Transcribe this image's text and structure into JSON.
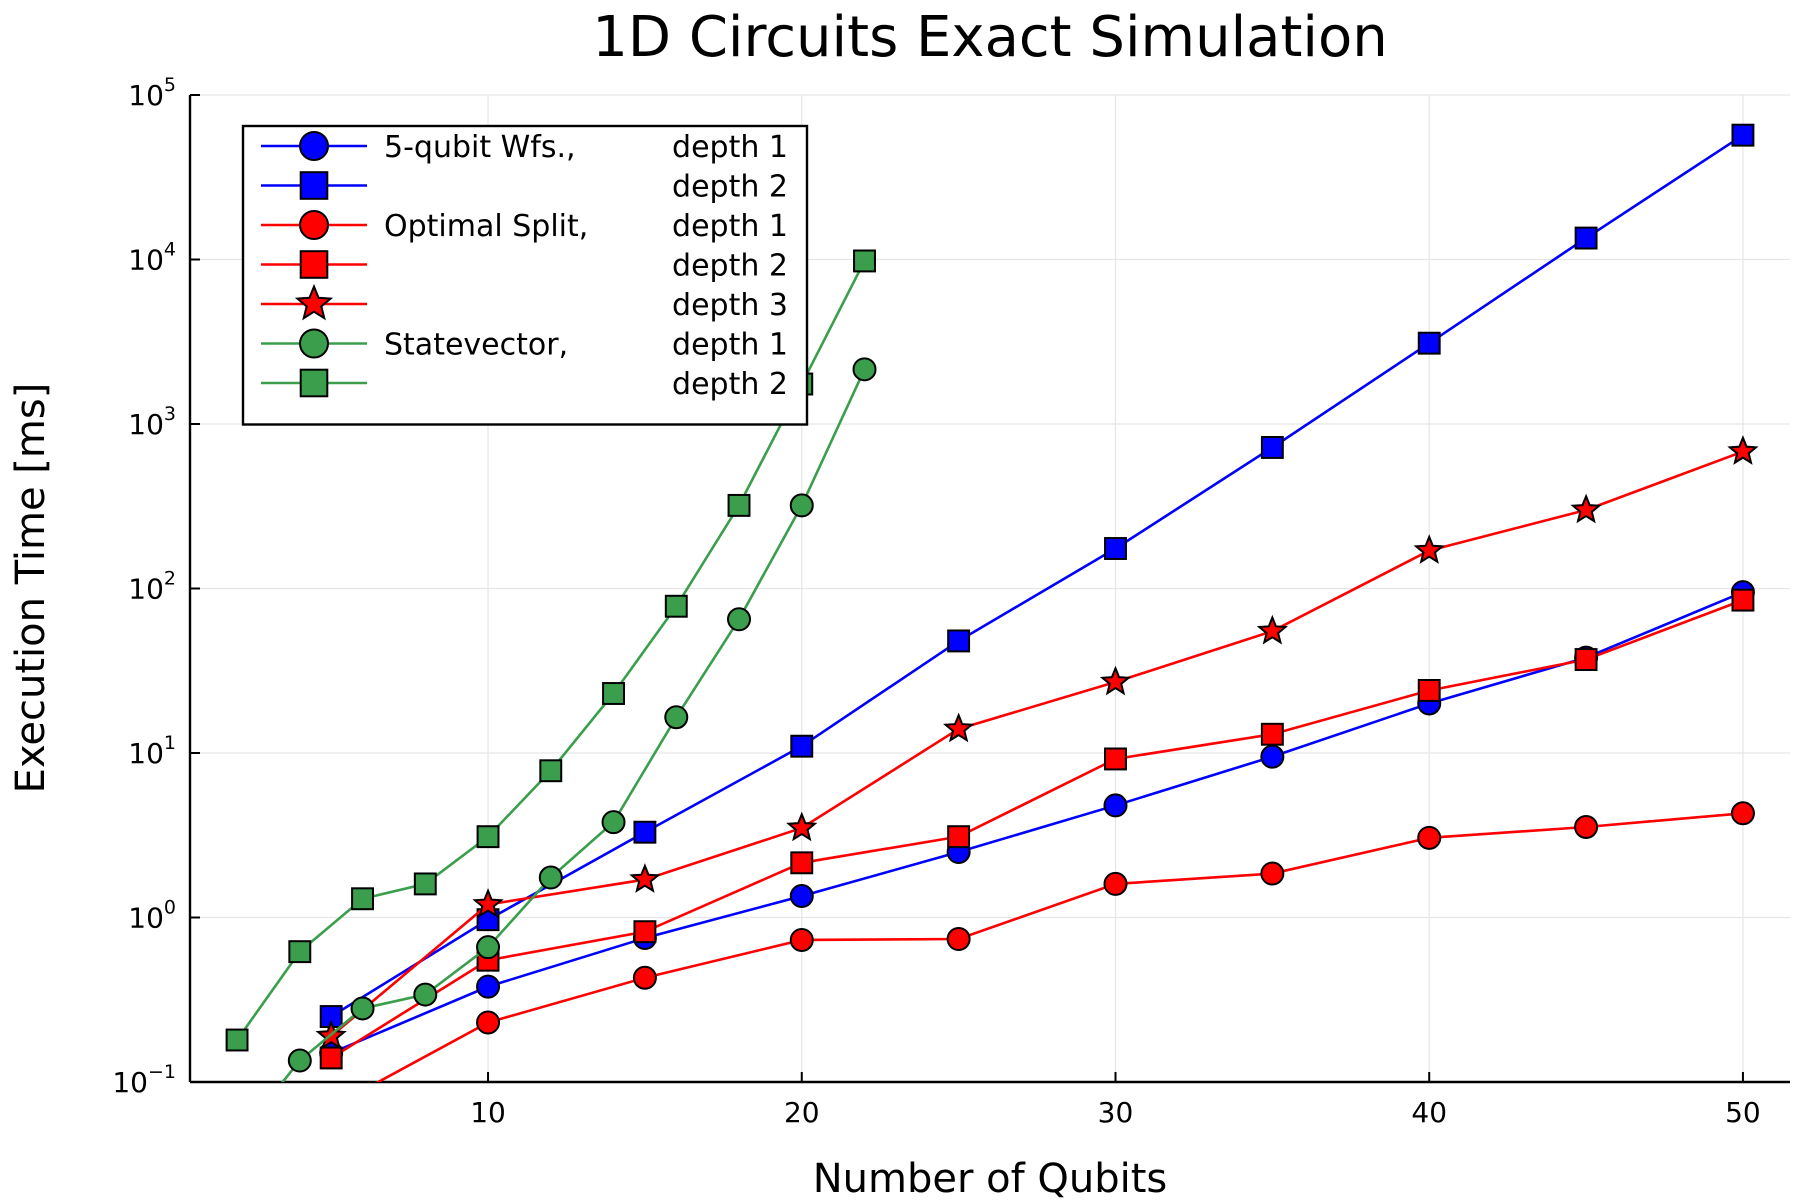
{
  "chart_data": {
    "type": "line",
    "title": "1D Circuits Exact Simulation",
    "xlabel": "Number of Qubits",
    "ylabel": "Execution Time [ms]",
    "xlim": [
      0.5,
      51.5
    ],
    "ylim": [
      0.1,
      100000
    ],
    "yscale": "log",
    "grid": true,
    "legend_position": "top-left",
    "x_ticks": [
      10,
      20,
      30,
      40,
      50
    ],
    "y_ticks": [
      {
        "value": 0.1,
        "base": "10",
        "exp": "−1"
      },
      {
        "value": 1,
        "base": "10",
        "exp": "0"
      },
      {
        "value": 10,
        "base": "10",
        "exp": "1"
      },
      {
        "value": 100,
        "base": "10",
        "exp": "2"
      },
      {
        "value": 1000,
        "base": "10",
        "exp": "3"
      },
      {
        "value": 10000,
        "base": "10",
        "exp": "4"
      },
      {
        "value": 100000,
        "base": "10",
        "exp": "5"
      }
    ],
    "series": [
      {
        "name": "5-qubit Wfs.,",
        "depth_label": "depth 1",
        "color": "#0000ff",
        "marker": "circle",
        "x": [
          5,
          10,
          15,
          20,
          25,
          30,
          35,
          40,
          45,
          50
        ],
        "y": [
          0.15,
          0.38,
          0.75,
          1.35,
          2.5,
          4.8,
          9.5,
          20,
          38,
          95
        ]
      },
      {
        "name": "",
        "depth_label": "depth 2",
        "color": "#0000ff",
        "marker": "square",
        "x": [
          5,
          10,
          15,
          20,
          25,
          30,
          35,
          40,
          45,
          50
        ],
        "y": [
          0.25,
          0.97,
          3.3,
          11,
          48,
          175,
          720,
          3100,
          13500,
          57000
        ]
      },
      {
        "name": "Optimal Split,",
        "depth_label": "depth 1",
        "color": "#ff0000",
        "marker": "circle",
        "x": [
          5,
          10,
          15,
          20,
          25,
          30,
          35,
          40,
          45,
          50
        ],
        "y": [
          0.07,
          0.23,
          0.43,
          0.73,
          0.74,
          1.6,
          1.85,
          3.05,
          3.55,
          4.3
        ]
      },
      {
        "name": "",
        "depth_label": "depth 2",
        "color": "#ff0000",
        "marker": "square",
        "x": [
          5,
          10,
          15,
          20,
          25,
          30,
          35,
          40,
          45,
          50
        ],
        "y": [
          0.14,
          0.55,
          0.82,
          2.15,
          3.1,
          9.2,
          13,
          24,
          37,
          85
        ]
      },
      {
        "name": "",
        "depth_label": "depth 3",
        "color": "#ff0000",
        "marker": "star",
        "x": [
          5,
          10,
          15,
          20,
          25,
          30,
          35,
          40,
          45,
          50
        ],
        "y": [
          0.19,
          1.2,
          1.7,
          3.5,
          14,
          27,
          55,
          170,
          300,
          680
        ]
      },
      {
        "name": "Statevector,",
        "depth_label": "depth 1",
        "color": "#3a9e4c",
        "marker": "circle",
        "x": [
          2,
          4,
          6,
          8,
          10,
          12,
          14,
          16,
          18,
          20,
          22
        ],
        "y": [
          0.045,
          0.135,
          0.28,
          0.34,
          0.66,
          1.75,
          3.8,
          16.5,
          65,
          320,
          2150
        ]
      },
      {
        "name": "",
        "depth_label": "depth 2",
        "color": "#3a9e4c",
        "marker": "square",
        "x": [
          2,
          4,
          6,
          8,
          10,
          12,
          14,
          16,
          18,
          20,
          22
        ],
        "y": [
          0.18,
          0.62,
          1.3,
          1.6,
          3.1,
          7.8,
          23,
          78,
          320,
          1750,
          9800
        ]
      }
    ]
  }
}
